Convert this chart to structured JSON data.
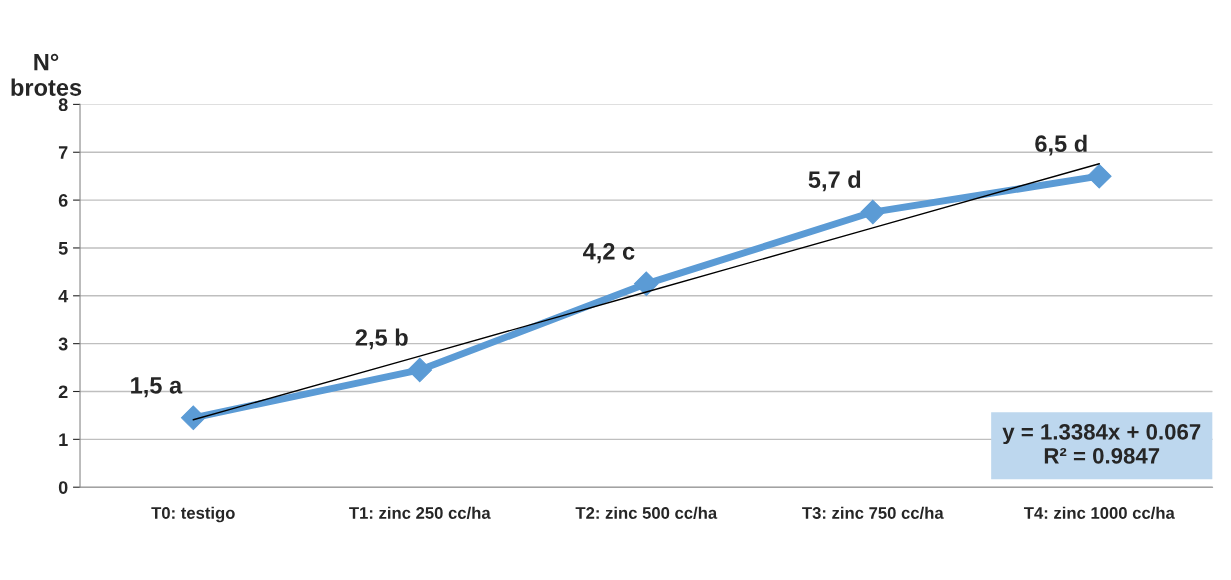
{
  "chart_data": {
    "type": "line",
    "ylabel": "N°\nbrotes",
    "categories": [
      "T0: testigo",
      "T1: zinc 250 cc/ha",
      "T2: zinc 500 cc/ha",
      "T3: zinc 750 cc/ha",
      "T4: zinc 1000 cc/ha"
    ],
    "series": [
      {
        "color": "#5b9bd5",
        "values": [
          1.45,
          2.45,
          4.25,
          5.75,
          6.5
        ],
        "value_labels": [
          "1,5 a",
          "2,5 b",
          "4,2 c",
          "5,7 d",
          "6,5 d"
        ],
        "marker": "diamond"
      },
      {
        "color": "#000000",
        "values": [
          1.41,
          2.74,
          4.08,
          5.42,
          6.76
        ],
        "marker": "none"
      }
    ],
    "ylim": [
      0,
      8
    ],
    "yticks": [
      0,
      1,
      2,
      3,
      4,
      5,
      6,
      7,
      8
    ],
    "grid": "y",
    "legend": false,
    "annotations": [
      "y = 1.3384x + 0.067\nR² = 0.9847"
    ]
  }
}
